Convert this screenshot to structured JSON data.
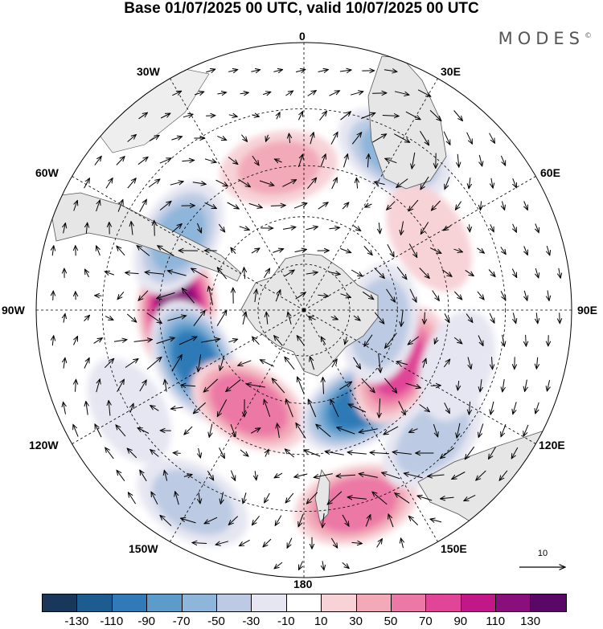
{
  "title": "Base 01/07/2025 00 UTC, valid 10/07/2025 00 UTC",
  "brand": {
    "name": "MODES",
    "mark": "©"
  },
  "longitude_labels": {
    "lon_0": "0",
    "lon_30E": "30E",
    "lon_60E": "60E",
    "lon_90E": "90E",
    "lon_120E": "120E",
    "lon_150E": "150E",
    "lon_180": "180",
    "lon_150W": "150W",
    "lon_120W": "120W",
    "lon_90W": "90W",
    "lon_60W": "60W",
    "lon_30W": "30W"
  },
  "vector_scale": {
    "label": "10",
    "units_magnitude": 10
  },
  "colorbar": {
    "tick_labels": [
      "-130",
      "-110",
      "-90",
      "-70",
      "-50",
      "-30",
      "-10",
      "10",
      "30",
      "50",
      "70",
      "90",
      "110",
      "130"
    ],
    "colors": [
      "#18375a",
      "#1c5c8e",
      "#2f7ab7",
      "#5b9ccb",
      "#8eb5da",
      "#bccbe3",
      "#e6e6f2",
      "#ffffff",
      "#f7d3d8",
      "#f2aab8",
      "#ec78a6",
      "#e04598",
      "#c21887",
      "#8a0f7c",
      "#5a0866"
    ]
  },
  "colors": {
    "land": "#e6e6e6",
    "coast": "#555555",
    "grid": "#000000",
    "arrow": "#000000"
  },
  "map_data": {
    "projection": "south-polar-stereographic",
    "field": "anomaly",
    "anomaly_centers": [
      {
        "lon": -90,
        "lat": -50,
        "value": 120,
        "note": "strongest positive"
      },
      {
        "lon": -115,
        "lat": -52,
        "value": -95
      },
      {
        "lon": -150,
        "lat": -55,
        "value": 70
      },
      {
        "lon": 150,
        "lat": -55,
        "value": -95
      },
      {
        "lon": 120,
        "lat": -55,
        "value": 75
      },
      {
        "lon": 165,
        "lat": -30,
        "value": 70
      },
      {
        "lon": 30,
        "lat": -35,
        "value": -55
      },
      {
        "lon": -60,
        "lat": -45,
        "value": -55
      },
      {
        "lon": 100,
        "lat": -65,
        "value": -45
      },
      {
        "lon": 135,
        "lat": -35,
        "value": -40
      },
      {
        "lon": -150,
        "lat": -25,
        "value": -40
      },
      {
        "lon": -10,
        "lat": -45,
        "value": 35
      },
      {
        "lon": 60,
        "lat": -45,
        "value": 30
      },
      {
        "lon": 110,
        "lat": -40,
        "value": -25
      },
      {
        "lon": -120,
        "lat": -30,
        "value": -25
      }
    ]
  }
}
